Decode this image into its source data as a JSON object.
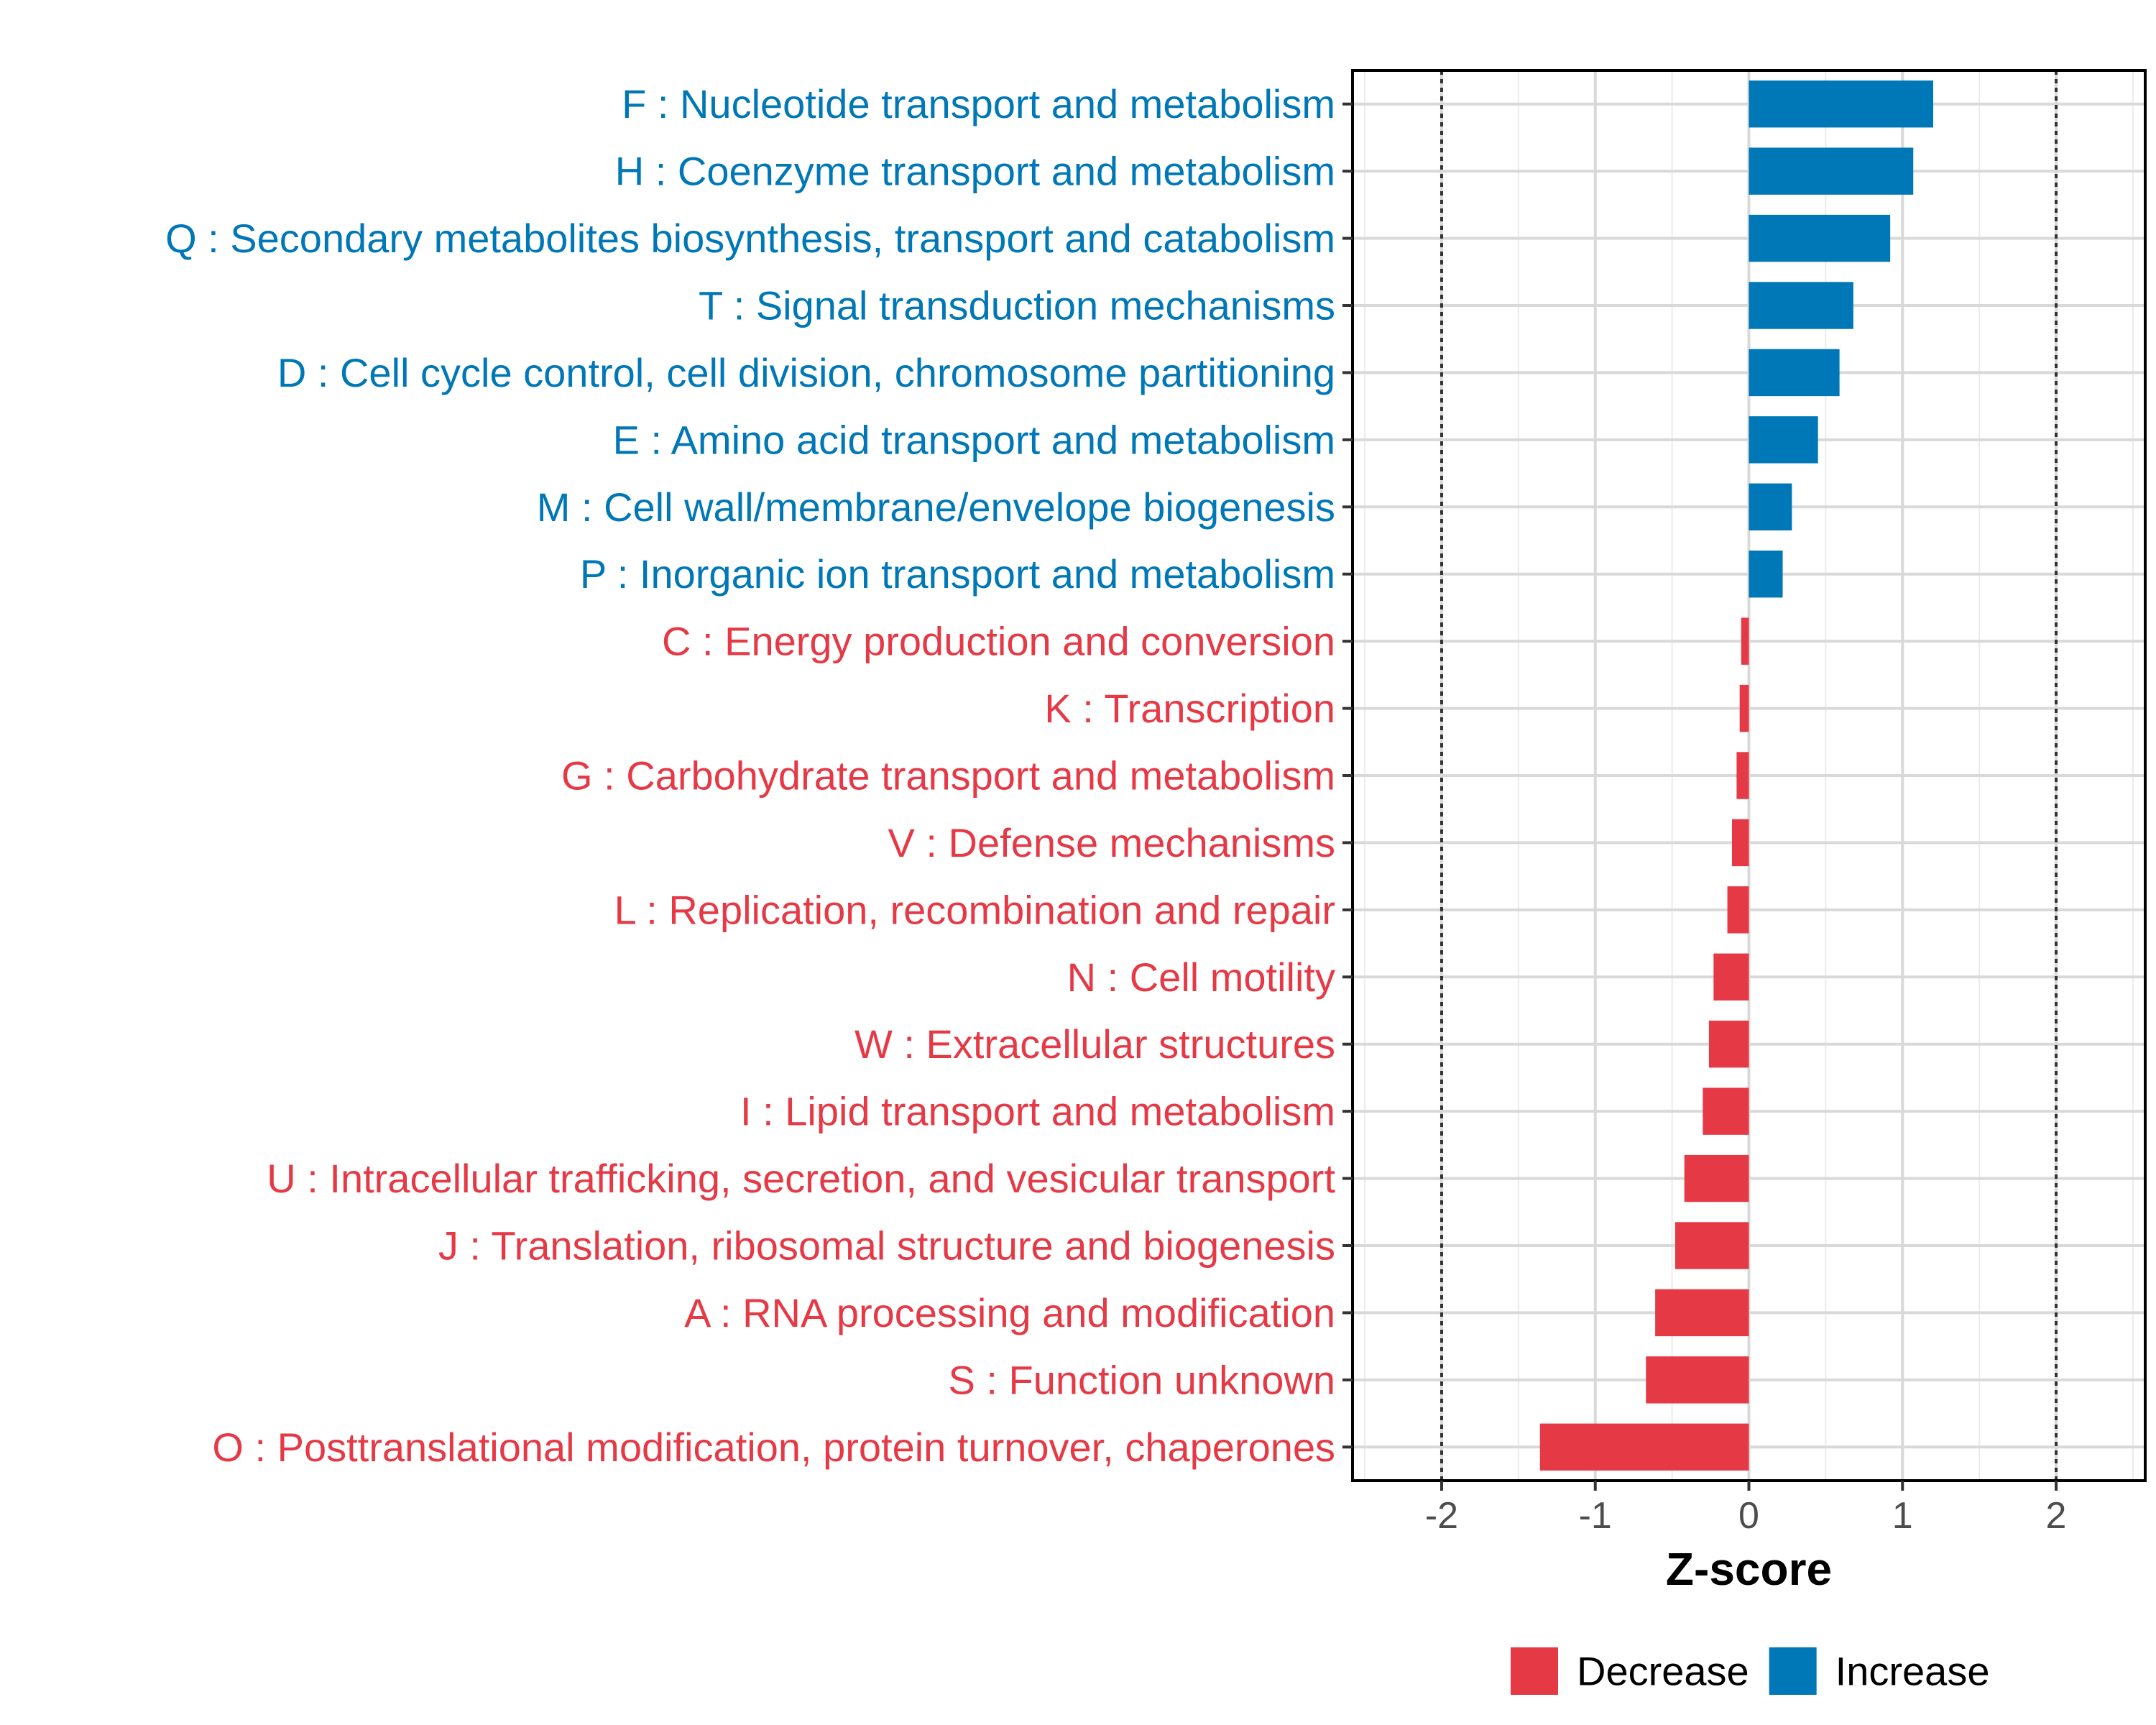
{
  "chart_data": {
    "type": "bar",
    "orientation": "horizontal",
    "xlabel": "Z-score",
    "xlim": [
      -2.58,
      2.58
    ],
    "xticks": [
      -2,
      -1,
      0,
      1,
      2
    ],
    "xtick_labels": [
      "-2",
      "-1",
      "0",
      "1",
      "2"
    ],
    "reference_lines": [
      -2,
      2
    ],
    "grid": true,
    "legend_position": "bottom-right",
    "colors": {
      "Decrease": "#E63946",
      "Increase": "#0077B6"
    },
    "legend": [
      {
        "name": "Decrease",
        "color": "#E63946"
      },
      {
        "name": "Increase",
        "color": "#0077B6"
      }
    ],
    "categories": [
      "F : Nucleotide transport and metabolism",
      "H : Coenzyme transport and metabolism",
      "Q : Secondary metabolites biosynthesis, transport and catabolism",
      "T : Signal transduction mechanisms",
      "D : Cell cycle control, cell division, chromosome partitioning",
      "E : Amino acid transport and metabolism",
      "M : Cell wall/membrane/envelope biogenesis",
      "P : Inorganic ion transport and metabolism",
      "C : Energy production and conversion",
      "K : Transcription",
      "G : Carbohydrate transport and metabolism",
      "V : Defense mechanisms",
      "L : Replication, recombination and repair",
      "N : Cell motility",
      "W : Extracellular structures",
      "I : Lipid transport and metabolism",
      "U : Intracellular trafficking, secretion, and vesicular transport",
      "J : Translation, ribosomal structure and biogenesis",
      "A : RNA processing and modification",
      "S : Function unknown",
      "O : Posttranslational modification, protein turnover, chaperones"
    ],
    "values": [
      1.2,
      1.07,
      0.92,
      0.68,
      0.59,
      0.45,
      0.28,
      0.22,
      -0.05,
      -0.06,
      -0.08,
      -0.11,
      -0.14,
      -0.23,
      -0.26,
      -0.3,
      -0.42,
      -0.48,
      -0.61,
      -0.67,
      -1.36
    ],
    "groups": [
      "Increase",
      "Increase",
      "Increase",
      "Increase",
      "Increase",
      "Increase",
      "Increase",
      "Increase",
      "Decrease",
      "Decrease",
      "Decrease",
      "Decrease",
      "Decrease",
      "Decrease",
      "Decrease",
      "Decrease",
      "Decrease",
      "Decrease",
      "Decrease",
      "Decrease",
      "Decrease"
    ]
  }
}
